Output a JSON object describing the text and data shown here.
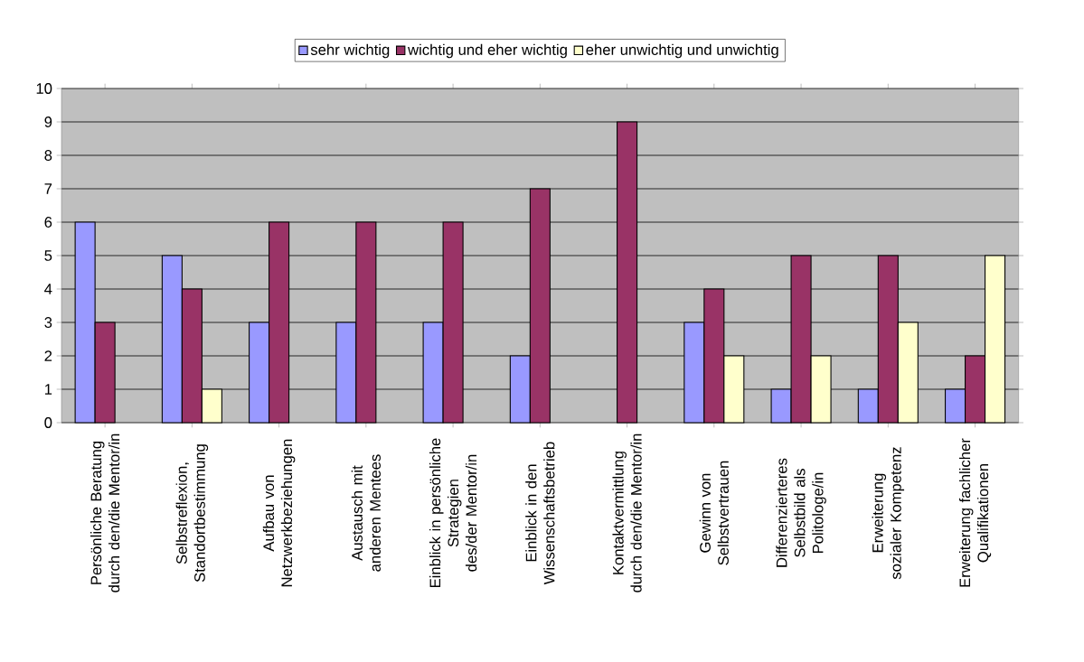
{
  "chart_data": {
    "type": "bar",
    "categories": [
      "Persönliche Beratung durch den/die Mentor/in",
      "Selbstreflexion, Standortbestimmung",
      "Aufbau von Netzwerkbeziehungen",
      "Austausch mit anderen Mentees",
      "Einblick in persönliche Strategien des/der Mentor/in",
      "Einblick in den Wissenschaftsbetrieb",
      "Kontaktvermittlung durch den/die Mentor/in",
      "Gewinn von Selbstvertrauen",
      "Differenzierteres Selbstbild als Politologe/in",
      "Erweiterung sozialer Kompetenz",
      "Erweiterung fachlicher Qualifikationen"
    ],
    "series": [
      {
        "name": "sehr wichtig",
        "color": "#9999ff",
        "values": [
          6,
          5,
          3,
          3,
          3,
          2,
          null,
          3,
          1,
          1,
          1
        ]
      },
      {
        "name": "wichtig und eher wichtig",
        "color": "#993366",
        "values": [
          3,
          4,
          6,
          6,
          6,
          7,
          9,
          4,
          5,
          5,
          2
        ]
      },
      {
        "name": "eher unwichtig und unwichtig",
        "color": "#ffffcc",
        "values": [
          null,
          1,
          null,
          null,
          null,
          null,
          null,
          2,
          2,
          3,
          5
        ]
      }
    ],
    "ylim": [
      0,
      10
    ],
    "yticks": [
      0,
      1,
      2,
      3,
      4,
      5,
      6,
      7,
      8,
      9,
      10
    ],
    "grid": "y",
    "legend": "top"
  }
}
